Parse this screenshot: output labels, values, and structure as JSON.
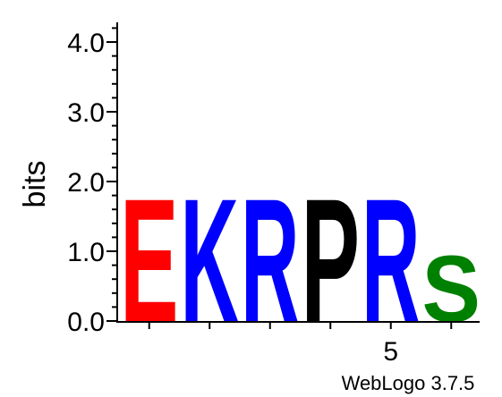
{
  "chart_data": {
    "type": "sequence-logo",
    "ylabel": "bits",
    "ylim": [
      0,
      4.32
    ],
    "yticks": [
      "0.0",
      "1.0",
      "2.0",
      "3.0",
      "4.0"
    ],
    "xtick_labels": [
      {
        "position": 5,
        "label": "5"
      }
    ],
    "credit": "WebLogo 3.7.5",
    "positions": [
      {
        "position": 1,
        "letter": "E",
        "bits": 1.93,
        "color": "#ff0000"
      },
      {
        "position": 2,
        "letter": "K",
        "bits": 1.93,
        "color": "#0000ff"
      },
      {
        "position": 3,
        "letter": "R",
        "bits": 1.93,
        "color": "#0000ff"
      },
      {
        "position": 4,
        "letter": "P",
        "bits": 1.93,
        "color": "#000000"
      },
      {
        "position": 5,
        "letter": "R",
        "bits": 1.93,
        "color": "#0000ff"
      },
      {
        "position": 6,
        "letter": "S",
        "bits": 1.03,
        "color": "#008000"
      }
    ]
  }
}
